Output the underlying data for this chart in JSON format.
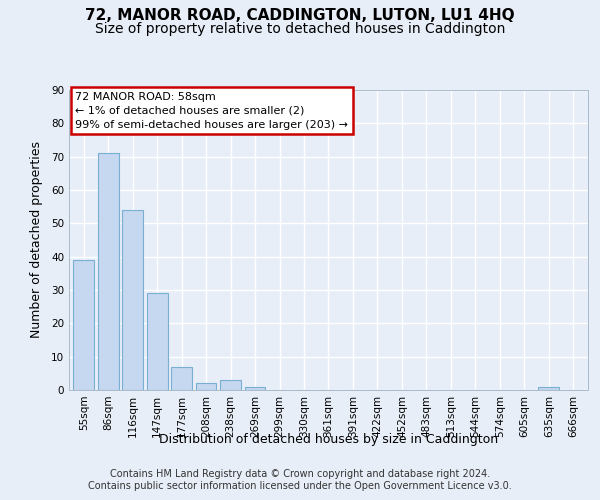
{
  "title": "72, MANOR ROAD, CADDINGTON, LUTON, LU1 4HQ",
  "subtitle": "Size of property relative to detached houses in Caddington",
  "xlabel": "Distribution of detached houses by size in Caddington",
  "ylabel": "Number of detached properties",
  "bar_labels": [
    "55sqm",
    "86sqm",
    "116sqm",
    "147sqm",
    "177sqm",
    "208sqm",
    "238sqm",
    "269sqm",
    "299sqm",
    "330sqm",
    "361sqm",
    "391sqm",
    "422sqm",
    "452sqm",
    "483sqm",
    "513sqm",
    "544sqm",
    "574sqm",
    "605sqm",
    "635sqm",
    "666sqm"
  ],
  "bar_values": [
    39,
    71,
    54,
    29,
    7,
    2,
    3,
    1,
    0,
    0,
    0,
    0,
    0,
    0,
    0,
    0,
    0,
    0,
    0,
    1,
    0
  ],
  "bar_color": "#c5d8ef",
  "bar_edge_color": "#7aafd4",
  "ylim": [
    0,
    90
  ],
  "yticks": [
    0,
    10,
    20,
    30,
    40,
    50,
    60,
    70,
    80,
    90
  ],
  "annotation_text": "72 MANOR ROAD: 58sqm\n← 1% of detached houses are smaller (2)\n99% of semi-detached houses are larger (203) →",
  "annotation_box_color": "#ffffff",
  "annotation_box_edge": "#cc0000",
  "bg_color": "#e8eef7",
  "plot_bg_color": "#e8eef7",
  "footer": "Contains HM Land Registry data © Crown copyright and database right 2024.\nContains public sector information licensed under the Open Government Licence v3.0.",
  "grid_color": "#ffffff",
  "title_fontsize": 11,
  "subtitle_fontsize": 10,
  "tick_fontsize": 7.5,
  "ylabel_fontsize": 9,
  "xlabel_fontsize": 9,
  "footer_fontsize": 7
}
